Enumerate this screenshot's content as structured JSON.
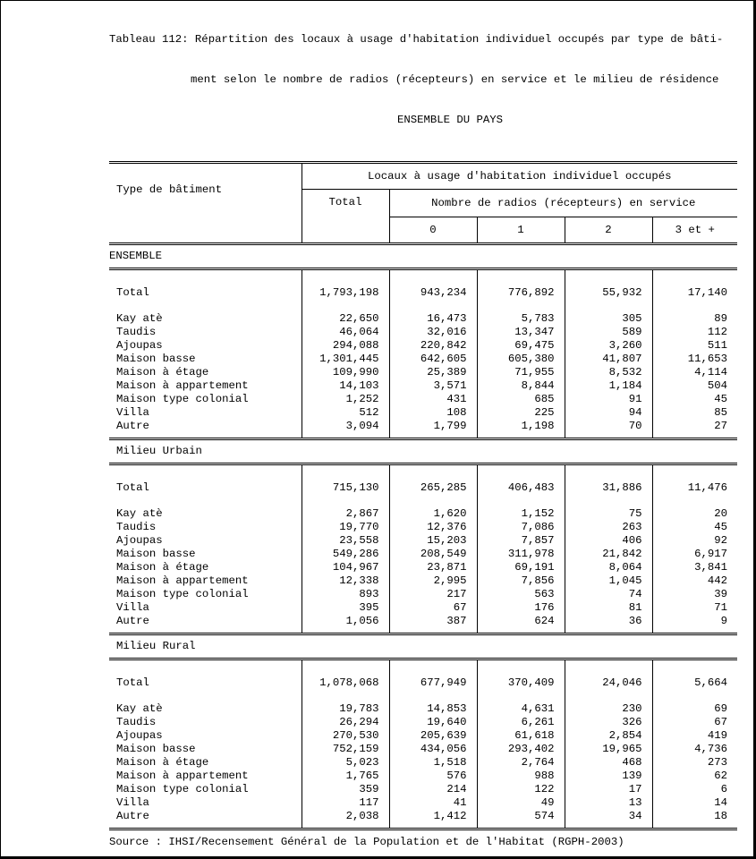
{
  "title": {
    "line1": "Tableau 112: Répartition des locaux à usage d'habitation individuel occupés par type de bâti-",
    "line2": "ment selon le nombre de radios (récepteurs) en service et le milieu de résidence",
    "line3": "ENSEMBLE DU PAYS"
  },
  "header": {
    "row_label": "Type de bâtiment",
    "group": "Locaux à usage d'habitation individuel occupés",
    "total": "Total",
    "subgroup": "Nombre de radios (récepteurs) en service",
    "cols": [
      "0",
      "1",
      "2",
      "3 et +"
    ]
  },
  "sections": [
    {
      "label": "ENSEMBLE",
      "rows": [
        {
          "type": "Total",
          "values": [
            "1,793,198",
            "943,234",
            "776,892",
            "55,932",
            "17,140"
          ]
        },
        {
          "type": "Kay atè",
          "values": [
            "22,650",
            "16,473",
            "5,783",
            "305",
            "89"
          ]
        },
        {
          "type": "Taudis",
          "values": [
            "46,064",
            "32,016",
            "13,347",
            "589",
            "112"
          ]
        },
        {
          "type": "Ajoupas",
          "values": [
            "294,088",
            "220,842",
            "69,475",
            "3,260",
            "511"
          ]
        },
        {
          "type": "Maison basse",
          "values": [
            "1,301,445",
            "642,605",
            "605,380",
            "41,807",
            "11,653"
          ]
        },
        {
          "type": "Maison à étage",
          "values": [
            "109,990",
            "25,389",
            "71,955",
            "8,532",
            "4,114"
          ]
        },
        {
          "type": "Maison à appartement",
          "values": [
            "14,103",
            "3,571",
            "8,844",
            "1,184",
            "504"
          ]
        },
        {
          "type": "Maison type colonial",
          "values": [
            "1,252",
            "431",
            "685",
            "91",
            "45"
          ]
        },
        {
          "type": "Villa",
          "values": [
            "512",
            "108",
            "225",
            "94",
            "85"
          ]
        },
        {
          "type": "Autre",
          "values": [
            "3,094",
            "1,799",
            "1,198",
            "70",
            "27"
          ]
        }
      ]
    },
    {
      "label": "Milieu Urbain",
      "rows": [
        {
          "type": "Total",
          "values": [
            "715,130",
            "265,285",
            "406,483",
            "31,886",
            "11,476"
          ]
        },
        {
          "type": "Kay atè",
          "values": [
            "2,867",
            "1,620",
            "1,152",
            "75",
            "20"
          ]
        },
        {
          "type": "Taudis",
          "values": [
            "19,770",
            "12,376",
            "7,086",
            "263",
            "45"
          ]
        },
        {
          "type": "Ajoupas",
          "values": [
            "23,558",
            "15,203",
            "7,857",
            "406",
            "92"
          ]
        },
        {
          "type": "Maison basse",
          "values": [
            "549,286",
            "208,549",
            "311,978",
            "21,842",
            "6,917"
          ]
        },
        {
          "type": "Maison à étage",
          "values": [
            "104,967",
            "23,871",
            "69,191",
            "8,064",
            "3,841"
          ]
        },
        {
          "type": "Maison à appartement",
          "values": [
            "12,338",
            "2,995",
            "7,856",
            "1,045",
            "442"
          ]
        },
        {
          "type": "Maison type colonial",
          "values": [
            "893",
            "217",
            "563",
            "74",
            "39"
          ]
        },
        {
          "type": "Villa",
          "values": [
            "395",
            "67",
            "176",
            "81",
            "71"
          ]
        },
        {
          "type": "Autre",
          "values": [
            "1,056",
            "387",
            "624",
            "36",
            "9"
          ]
        }
      ]
    },
    {
      "label": "Milieu Rural",
      "rows": [
        {
          "type": "Total",
          "values": [
            "1,078,068",
            "677,949",
            "370,409",
            "24,046",
            "5,664"
          ]
        },
        {
          "type": "Kay atè",
          "values": [
            "19,783",
            "14,853",
            "4,631",
            "230",
            "69"
          ]
        },
        {
          "type": "Taudis",
          "values": [
            "26,294",
            "19,640",
            "6,261",
            "326",
            "67"
          ]
        },
        {
          "type": "Ajoupas",
          "values": [
            "270,530",
            "205,639",
            "61,618",
            "2,854",
            "419"
          ]
        },
        {
          "type": "Maison basse",
          "values": [
            "752,159",
            "434,056",
            "293,402",
            "19,965",
            "4,736"
          ]
        },
        {
          "type": "Maison à étage",
          "values": [
            "5,023",
            "1,518",
            "2,764",
            "468",
            "273"
          ]
        },
        {
          "type": "Maison à appartement",
          "values": [
            "1,765",
            "576",
            "988",
            "139",
            "62"
          ]
        },
        {
          "type": "Maison type colonial",
          "values": [
            "359",
            "214",
            "122",
            "17",
            "6"
          ]
        },
        {
          "type": "Villa",
          "values": [
            "117",
            "41",
            "49",
            "13",
            "14"
          ]
        },
        {
          "type": "Autre",
          "values": [
            "2,038",
            "1,412",
            "574",
            "34",
            "18"
          ]
        }
      ]
    }
  ],
  "source": "Source : IHSI/Recensement Général de la Population et de l'Habitat (RGPH-2003)"
}
